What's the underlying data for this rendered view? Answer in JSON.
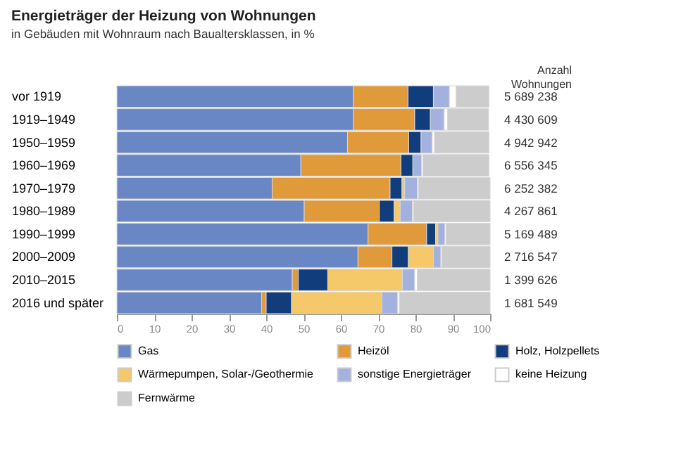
{
  "chart_data": {
    "type": "bar",
    "orientation": "horizontal",
    "stacked": true,
    "title": "Energieträger der Heizung von Wohnungen",
    "subtitle": "in Gebäuden mit Wohnraum nach Baualtersklassen, in %",
    "categories": [
      "vor 1919",
      "1919–1949",
      "1950–1959",
      "1960–1969",
      "1970–1979",
      "1980–1989",
      "1990–1999",
      "2000–2009",
      "2010–2015",
      "2016 und später"
    ],
    "series": [
      {
        "name": "Gas",
        "color": "#6a87c5",
        "values": [
          63.3,
          63.3,
          61.8,
          49.3,
          41.6,
          50.2,
          67.3,
          64.6,
          47.0,
          38.8
        ]
      },
      {
        "name": "Heizöl",
        "color": "#e09a3a",
        "values": [
          14.7,
          16.5,
          16.4,
          26.8,
          31.6,
          20.1,
          15.7,
          9.1,
          1.6,
          1.2
        ]
      },
      {
        "name": "Holz, Holzpellets",
        "color": "#123d7c",
        "values": [
          6.8,
          4.2,
          3.3,
          3.2,
          3.2,
          4.0,
          2.4,
          4.4,
          7.9,
          6.8
        ]
      },
      {
        "name": "Wärmepumpen, Solar-/Geothermie",
        "color": "#f5c86a",
        "values": [
          null,
          null,
          null,
          null,
          0.7,
          1.6,
          0.6,
          6.7,
          20.0,
          24.2
        ]
      },
      {
        "name": "sonstige Energieträger",
        "color": "#a3b1de",
        "values": [
          4.3,
          3.7,
          3.0,
          2.3,
          3.4,
          3.3,
          1.9,
          2.0,
          3.3,
          4.2
        ]
      },
      {
        "name": "keine Heizung",
        "color": "#ffffff",
        "values": [
          1.8,
          0.9,
          0.6,
          0.4,
          0.3,
          0.3,
          0.3,
          0.3,
          0.7,
          0.5
        ]
      },
      {
        "name": "Fernwärme",
        "color": "#cccccc",
        "values": [
          8.8,
          11.0,
          14.6,
          17.7,
          19.2,
          20.5,
          11.8,
          12.9,
          19.5,
          24.3
        ]
      }
    ],
    "xlim": [
      0,
      100
    ],
    "xticks": [
      0,
      10,
      20,
      30,
      40,
      50,
      60,
      70,
      80,
      90,
      100
    ],
    "grid": false,
    "legend": "bottom",
    "annotations": [
      "Anzahl\nWohnungen",
      "5 689 238",
      "4 430 609",
      "4 942 942",
      "6 556 345",
      "6 252 382",
      "4 267 861",
      "5 169 489",
      "2 716 547",
      "1 399 626",
      "1 681 549"
    ]
  }
}
